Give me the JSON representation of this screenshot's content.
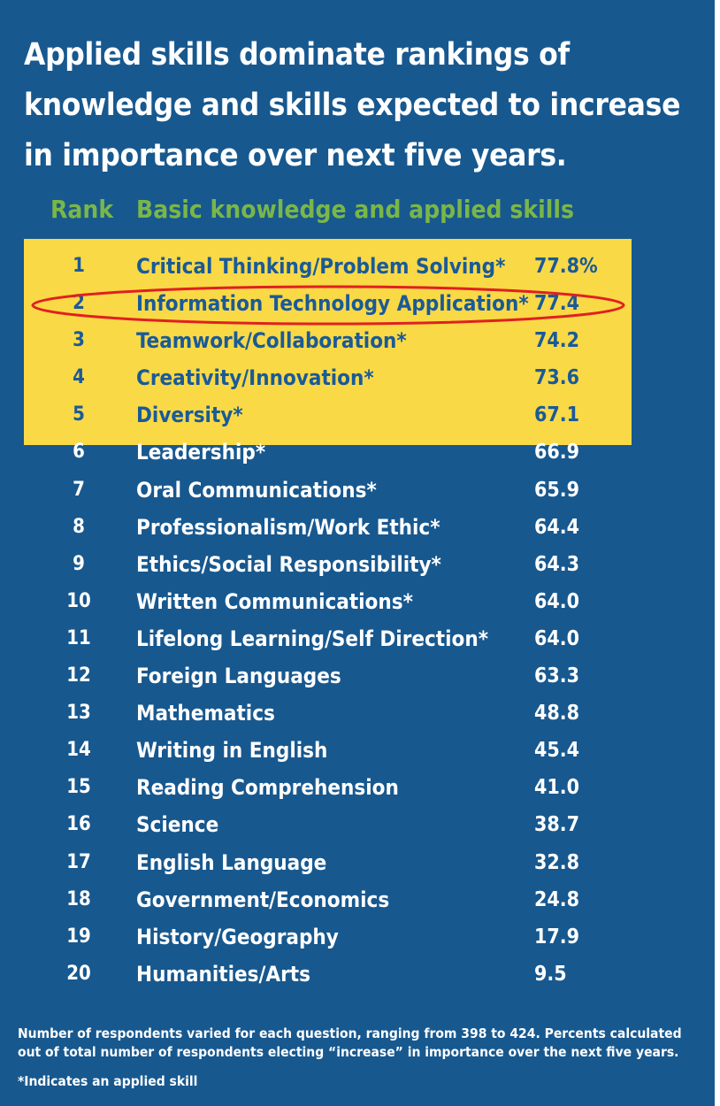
{
  "title": "Applied skills dominate rankings of knowledge and skills expected to increase in importance over next five years.",
  "column_headers": {
    "rank": "Rank",
    "skill": "Basic knowledge and applied skills"
  },
  "colors": {
    "background": "#17588f",
    "highlight": "#f9d946",
    "header_green": "#7ab648",
    "top_text": "#1a5a98",
    "rest_text": "#ffffff",
    "ring": "#e02020"
  },
  "chart_data": {
    "type": "table",
    "title": "Applied skills dominate rankings of knowledge and skills expected to increase in importance over next five years.",
    "columns": [
      "Rank",
      "Basic knowledge and applied skills",
      ""
    ],
    "highlighted_ranks": [
      1,
      2,
      3,
      4,
      5
    ],
    "circled_rank": 2,
    "rows": [
      {
        "rank": "1",
        "skill": "Critical Thinking/Problem Solving*",
        "percent": "77.8%"
      },
      {
        "rank": "2",
        "skill": "Information Technology Application*",
        "percent": "77.4"
      },
      {
        "rank": "3",
        "skill": "Teamwork/Collaboration*",
        "percent": "74.2"
      },
      {
        "rank": "4",
        "skill": "Creativity/Innovation*",
        "percent": "73.6"
      },
      {
        "rank": "5",
        "skill": "Diversity*",
        "percent": "67.1"
      },
      {
        "rank": "6",
        "skill": "Leadership*",
        "percent": "66.9"
      },
      {
        "rank": "7",
        "skill": "Oral Communications*",
        "percent": "65.9"
      },
      {
        "rank": "8",
        "skill": "Professionalism/Work Ethic*",
        "percent": "64.4"
      },
      {
        "rank": "9",
        "skill": "Ethics/Social Responsibility*",
        "percent": "64.3"
      },
      {
        "rank": "10",
        "skill": "Written Communications*",
        "percent": "64.0"
      },
      {
        "rank": "11",
        "skill": "Lifelong Learning/Self Direction*",
        "percent": "64.0"
      },
      {
        "rank": "12",
        "skill": "Foreign Languages",
        "percent": "63.3"
      },
      {
        "rank": "13",
        "skill": "Mathematics",
        "percent": "48.8"
      },
      {
        "rank": "14",
        "skill": "Writing in English",
        "percent": "45.4"
      },
      {
        "rank": "15",
        "skill": "Reading Comprehension",
        "percent": "41.0"
      },
      {
        "rank": "16",
        "skill": "Science",
        "percent": "38.7"
      },
      {
        "rank": "17",
        "skill": "English Language",
        "percent": "32.8"
      },
      {
        "rank": "18",
        "skill": "Government/Economics",
        "percent": "24.8"
      },
      {
        "rank": "19",
        "skill": "History/Geography",
        "percent": "17.9"
      },
      {
        "rank": "20",
        "skill": "Humanities/Arts",
        "percent": "9.5"
      }
    ]
  },
  "footnotes": {
    "respondents": "Number of respondents varied for each question, ranging from 398 to 424. Percents calculated out of total number of respondents electing “increase” in importance over the next five years.",
    "applied": "*Indicates an applied skill"
  }
}
